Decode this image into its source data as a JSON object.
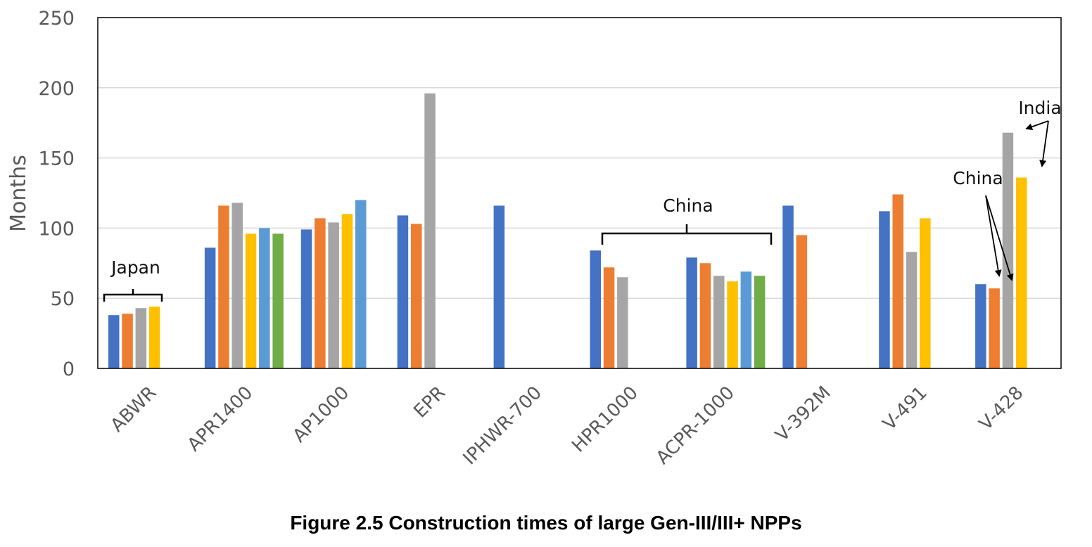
{
  "caption": "Figure 2.5 Construction times of large Gen-III/III+ NPPs",
  "chart_data": {
    "type": "bar",
    "title": "",
    "xlabel": "",
    "ylabel": "Months",
    "ylim": [
      0,
      250
    ],
    "yticks": [
      "0",
      "50",
      "100",
      "150",
      "200",
      "250"
    ],
    "grid": true,
    "categories": [
      "ABWR",
      "APR1400",
      "AP1000",
      "EPR",
      "IPHWR-700",
      "HPR1000",
      "ACPR-1000",
      "V-392M",
      "V-491",
      "V-428"
    ],
    "series_colors": [
      "#4472C4",
      "#ED7D31",
      "#A5A5A5",
      "#FFC000",
      "#5B9BD5",
      "#70AD47"
    ],
    "groups": [
      {
        "category": "ABWR",
        "values": [
          38,
          39,
          43,
          44
        ]
      },
      {
        "category": "APR1400",
        "values": [
          86,
          116,
          118,
          96,
          100,
          96
        ]
      },
      {
        "category": "AP1000",
        "values": [
          99,
          107,
          104,
          110,
          120
        ]
      },
      {
        "category": "EPR",
        "values": [
          109,
          103,
          196
        ]
      },
      {
        "category": "IPHWR-700",
        "values": [
          116
        ]
      },
      {
        "category": "HPR1000",
        "values": [
          84,
          72,
          65
        ]
      },
      {
        "category": "ACPR-1000",
        "values": [
          79,
          75,
          66,
          62,
          69,
          66
        ]
      },
      {
        "category": "V-392M",
        "values": [
          116,
          95
        ]
      },
      {
        "category": "V-491",
        "values": [
          112,
          124,
          83,
          107
        ]
      },
      {
        "category": "V-428",
        "values": [
          60,
          57,
          168,
          136
        ]
      }
    ],
    "annotations": {
      "japan": "Japan",
      "china_bracket": "China",
      "china_arrows": "China",
      "india": "India"
    }
  }
}
